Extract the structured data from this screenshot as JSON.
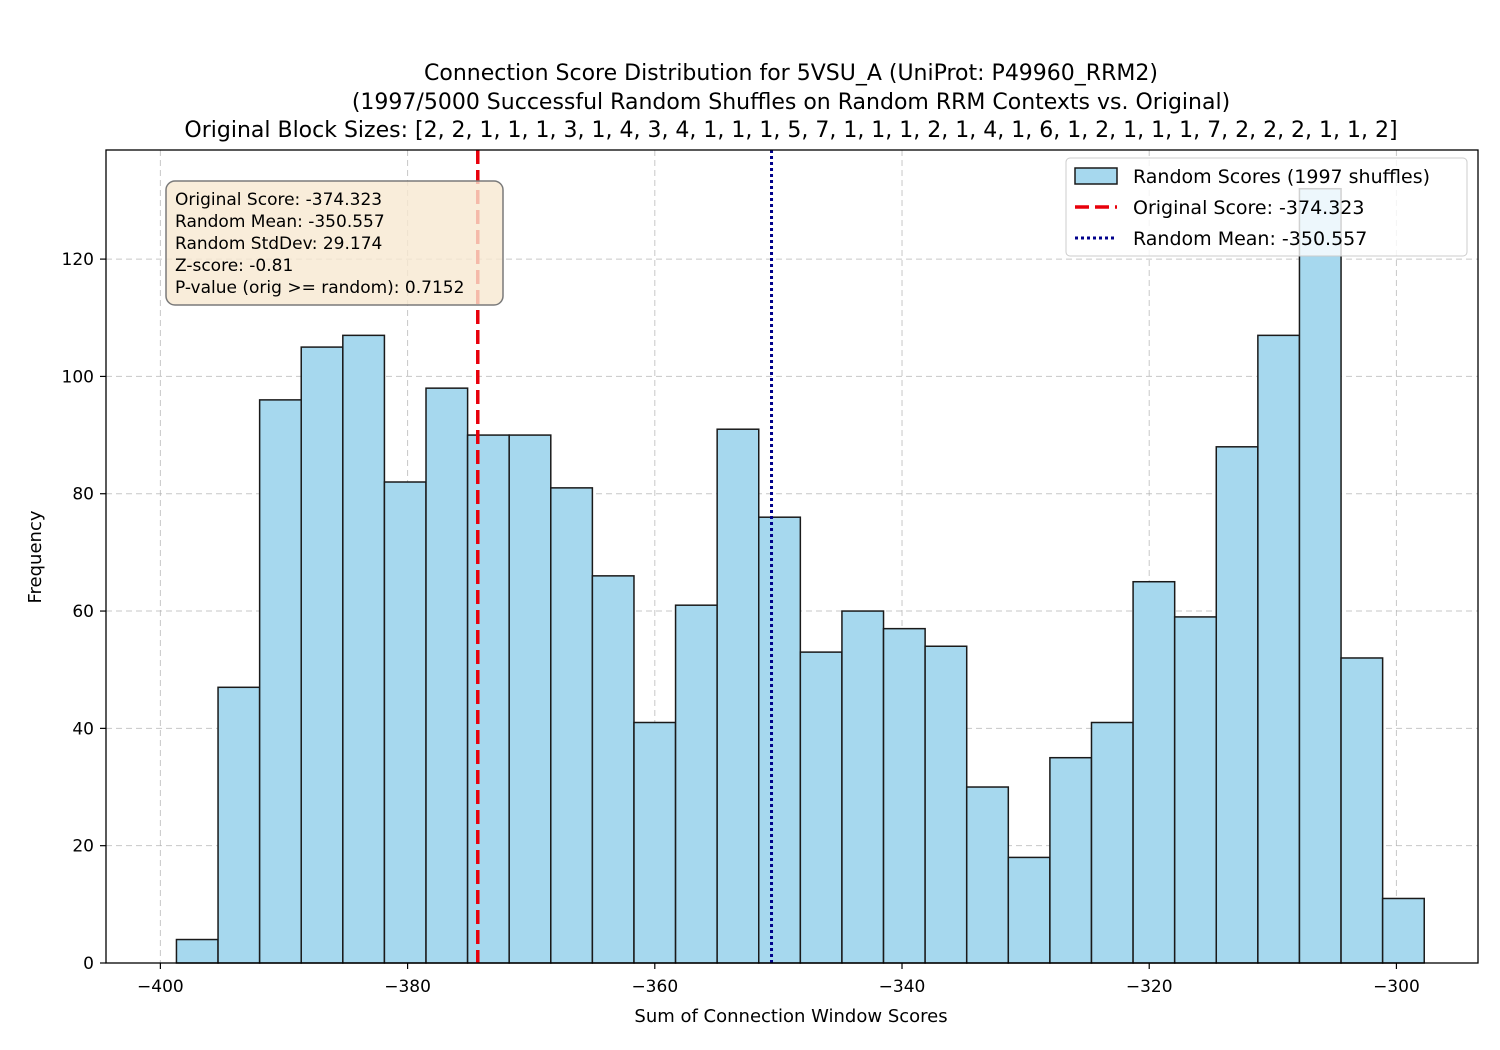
{
  "chart_data": {
    "type": "bar",
    "title_lines": [
      "Connection Score Distribution for 5VSU_A (UniProt: P49960_RRM2)",
      "(1997/5000 Successful Random Shuffles on Random RRM Contexts vs. Original)",
      "Original Block Sizes: [2, 2, 1, 1, 1, 3, 1, 4, 3, 4, 1, 1, 1, 5, 7, 1, 1, 1, 2, 1, 4, 1, 6, 1, 2, 1, 1, 1, 7, 2, 2, 2, 1, 1, 2]"
    ],
    "xlabel": "Sum of Connection Window Scores",
    "ylabel": "Frequency",
    "xlim": [
      -404.4,
      -293.4
    ],
    "ylim": [
      0,
      138.6
    ],
    "xticks": [
      -400,
      -380,
      -360,
      -340,
      -320,
      -300
    ],
    "xtick_labels": [
      "−400",
      "−380",
      "−360",
      "−340",
      "−320",
      "−300"
    ],
    "yticks": [
      0,
      20,
      40,
      60,
      80,
      100,
      120
    ],
    "ytick_labels": [
      "0",
      "20",
      "40",
      "60",
      "80",
      "100",
      "120"
    ],
    "grid": true,
    "bin_start": -398.7,
    "bin_width": 3.365,
    "values": [
      4,
      47,
      96,
      105,
      107,
      82,
      98,
      90,
      90,
      81,
      66,
      41,
      61,
      91,
      76,
      53,
      60,
      57,
      54,
      30,
      18,
      35,
      41,
      65,
      59,
      88,
      107,
      132,
      52,
      11
    ],
    "bar_color": "#a6d8ee",
    "bar_edge_color": "#1a1a1a",
    "original_score": -374.323,
    "random_mean": -350.557,
    "original_line_color": "#e8000b",
    "mean_line_color": "#00008b",
    "legend": {
      "position": "top-right",
      "items": [
        {
          "label": "Random Scores (1997 shuffles)",
          "kind": "patch"
        },
        {
          "label": "Original Score: -374.323",
          "kind": "dashed"
        },
        {
          "label": "Random Mean: -350.557",
          "kind": "dotted"
        }
      ]
    },
    "stats_box": {
      "position": "top-left",
      "lines": [
        "Original Score: -374.323",
        "Random Mean: -350.557",
        "Random StdDev: 29.174",
        "Z-score: -0.81",
        "P-value (orig >= random): 0.7152"
      ],
      "background": "#f7e9d1"
    }
  }
}
